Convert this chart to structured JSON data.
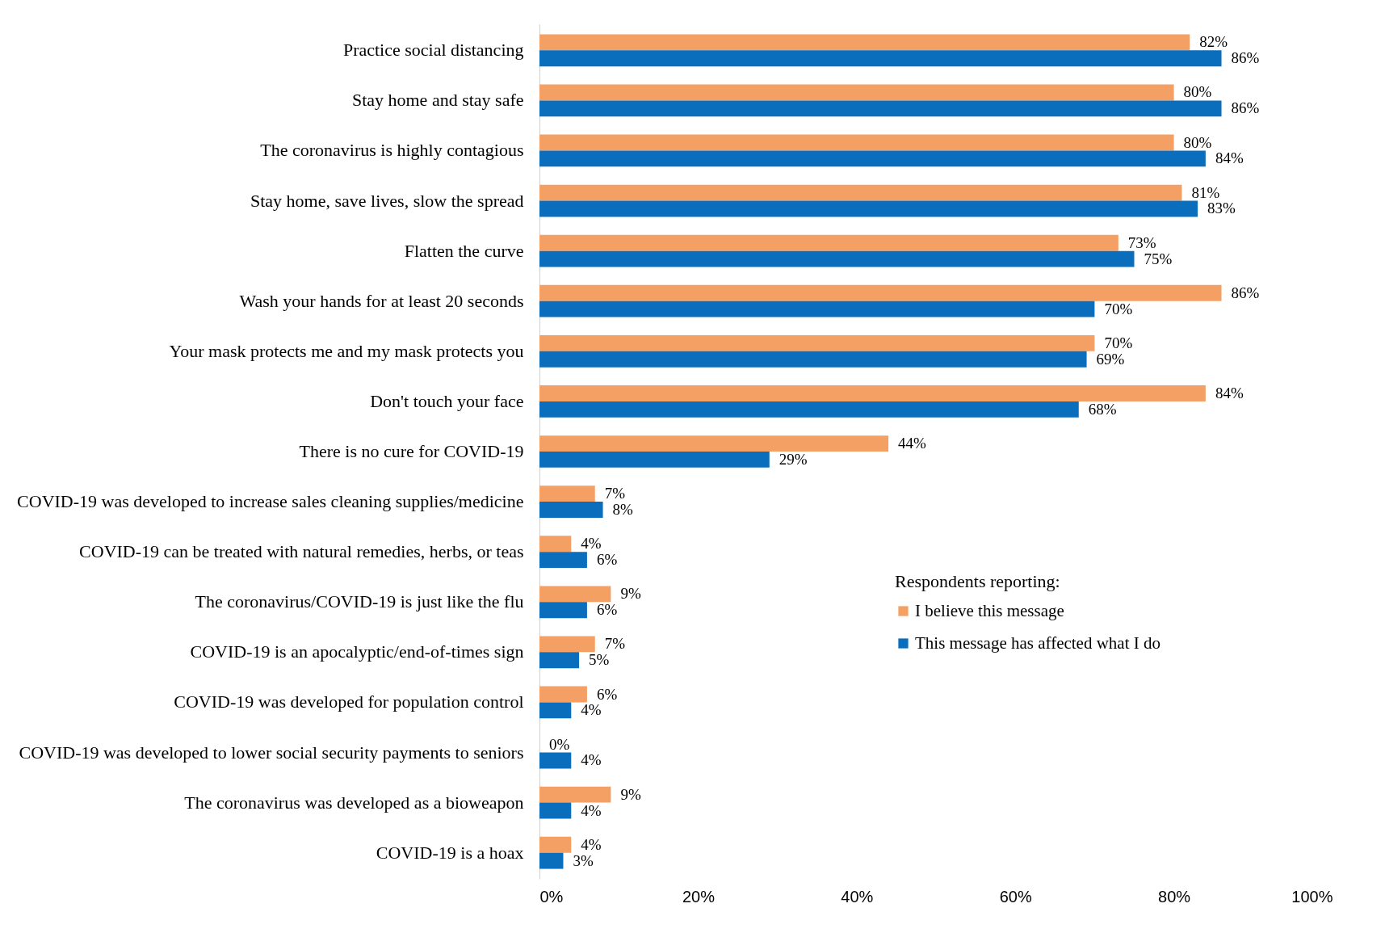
{
  "chart_data": {
    "type": "bar",
    "orientation": "horizontal",
    "legend_title": "Respondents reporting:",
    "categories": [
      "Practice social distancing",
      "Stay home and stay safe",
      "The coronavirus is highly contagious",
      "Stay home, save lives, slow the spread",
      "Flatten the curve",
      "Wash your hands for at least 20 seconds",
      "Your mask protects me and my mask protects you",
      "Don't touch your face",
      "There is no cure for COVID-19",
      "COVID-19 was developed to increase sales cleaning supplies/medicine",
      "COVID-19 can be treated with natural remedies, herbs, or teas",
      "The coronavirus/COVID-19 is just like the flu",
      "COVID-19 is an apocalyptic/end-of-times sign",
      "COVID-19 was developed for population control",
      "COVID-19 was developed to lower social security payments to seniors",
      "The coronavirus was developed as a bioweapon",
      "COVID-19 is a hoax"
    ],
    "series": [
      {
        "name": "I believe this message",
        "color": "#f4a064",
        "values": [
          82,
          80,
          80,
          81,
          73,
          86,
          70,
          84,
          44,
          7,
          4,
          9,
          7,
          6,
          0,
          9,
          4
        ],
        "value_labels": [
          "82%",
          "80%",
          "80%",
          "81%",
          "73%",
          "86%",
          "70%",
          "84%",
          "44%",
          "7%",
          "4%",
          "9%",
          "7%",
          "6%",
          "0%",
          "9%",
          "4%"
        ]
      },
      {
        "name": "This message has affected what I do",
        "color": "#0a6ebd",
        "values": [
          86,
          86,
          84,
          83,
          75,
          70,
          69,
          68,
          29,
          8,
          6,
          6,
          5,
          4,
          4,
          4,
          3
        ],
        "value_labels": [
          "86%",
          "86%",
          "84%",
          "83%",
          "75%",
          "70%",
          "69%",
          "68%",
          "29%",
          "8%",
          "6%",
          "6%",
          "5%",
          "4%",
          "4%",
          "4%",
          "3%"
        ]
      }
    ],
    "xlim": [
      0,
      100
    ],
    "xticks": [
      {
        "value": 0,
        "label": "0%"
      },
      {
        "value": 20,
        "label": "20%"
      },
      {
        "value": 40,
        "label": "40%"
      },
      {
        "value": 60,
        "label": "60%"
      },
      {
        "value": 80,
        "label": "80%"
      },
      {
        "value": 100,
        "label": "100%"
      }
    ],
    "grid": false,
    "legend": "center right"
  }
}
